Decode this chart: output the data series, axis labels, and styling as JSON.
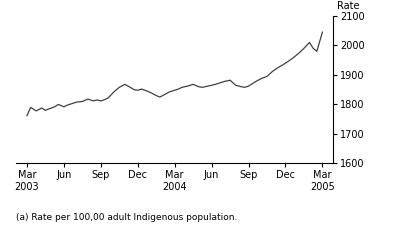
{
  "ylabel": "Rate",
  "footnote": "(a) Rate per 100,00 adult Indigenous population.",
  "ylim": [
    1600,
    2100
  ],
  "yticks": [
    1600,
    1700,
    1800,
    1900,
    2000,
    2100
  ],
  "x_labels": [
    "Mar\n2003",
    "Jun",
    "Sep",
    "Dec",
    "Mar\n2004",
    "Jun",
    "Sep",
    "Dec",
    "Mar\n2005"
  ],
  "x_positions": [
    0,
    1,
    2,
    3,
    4,
    5,
    6,
    7,
    8
  ],
  "data_x": [
    0.0,
    0.1,
    0.25,
    0.4,
    0.5,
    0.6,
    0.75,
    0.85,
    1.0,
    1.1,
    1.2,
    1.35,
    1.5,
    1.65,
    1.8,
    1.9,
    2.0,
    2.1,
    2.2,
    2.35,
    2.5,
    2.65,
    2.8,
    2.9,
    3.0,
    3.1,
    3.2,
    3.35,
    3.5,
    3.6,
    3.75,
    3.85,
    4.0,
    4.1,
    4.2,
    4.35,
    4.5,
    4.65,
    4.75,
    4.9,
    5.0,
    5.1,
    5.2,
    5.35,
    5.5,
    5.65,
    5.8,
    5.9,
    6.0,
    6.1,
    6.2,
    6.35,
    6.5,
    6.65,
    6.8,
    6.9,
    7.0,
    7.1,
    7.25,
    7.4,
    7.5,
    7.65,
    7.75,
    7.85,
    8.0
  ],
  "data_y": [
    1762,
    1790,
    1778,
    1788,
    1780,
    1785,
    1792,
    1800,
    1792,
    1798,
    1802,
    1808,
    1810,
    1818,
    1812,
    1815,
    1812,
    1816,
    1822,
    1842,
    1858,
    1868,
    1858,
    1850,
    1848,
    1852,
    1848,
    1840,
    1830,
    1825,
    1835,
    1842,
    1848,
    1852,
    1858,
    1862,
    1868,
    1860,
    1858,
    1862,
    1865,
    1868,
    1872,
    1878,
    1882,
    1865,
    1860,
    1858,
    1862,
    1870,
    1878,
    1888,
    1895,
    1912,
    1925,
    1932,
    1940,
    1948,
    1962,
    1978,
    1990,
    2010,
    1990,
    1980,
    2045
  ],
  "line_color": "#404040",
  "line_width": 0.9,
  "background_color": "#ffffff",
  "spine_color": "#000000"
}
